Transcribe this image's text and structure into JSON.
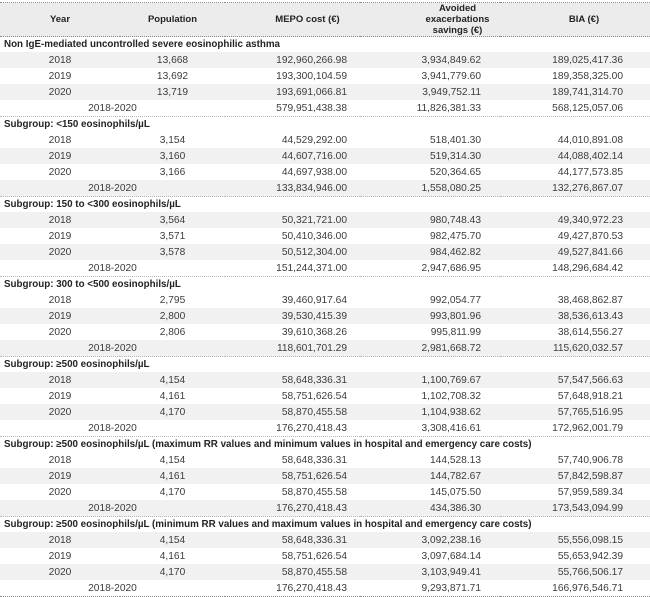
{
  "table": {
    "columns": [
      "Year",
      "Population",
      "MEPO cost (€)",
      "Avoided exacerbations savings (€)",
      "BIA (€)"
    ],
    "total_period_label": "2018-2020",
    "stripe_color": "#f1f1f1",
    "header_bg_color": "#ececec",
    "sections": [
      {
        "title": "Non IgE-mediated uncontrolled severe eosinophilic asthma",
        "rows": [
          {
            "year": "2018",
            "population": "13,668",
            "mepo_cost": "192,960,266.98",
            "avoided_savings": "3,934,849.62",
            "bia": "189,025,417.36"
          },
          {
            "year": "2019",
            "population": "13,692",
            "mepo_cost": "193,300,104.59",
            "avoided_savings": "3,941,779.60",
            "bia": "189,358,325.00"
          },
          {
            "year": "2020",
            "population": "13,719",
            "mepo_cost": "193,691,066.81",
            "avoided_savings": "3,949,752.11",
            "bia": "189,741,314.70"
          }
        ],
        "total": {
          "period": "2018-2020",
          "mepo_cost": "579,951,438.38",
          "avoided_savings": "11,826,381.33",
          "bia": "568,125,057.06"
        }
      },
      {
        "title": "Subgroup: <150 eosinophils/µL",
        "rows": [
          {
            "year": "2018",
            "population": "3,154",
            "mepo_cost": "44,529,292.00",
            "avoided_savings": "518,401.30",
            "bia": "44,010,891.08"
          },
          {
            "year": "2019",
            "population": "3,160",
            "mepo_cost": "44,607,716.00",
            "avoided_savings": "519,314.30",
            "bia": "44,088,402.14"
          },
          {
            "year": "2020",
            "population": "3,166",
            "mepo_cost": "44,697,938.00",
            "avoided_savings": "520,364.65",
            "bia": "44,177,573.85"
          }
        ],
        "total": {
          "period": "2018-2020",
          "mepo_cost": "133,834,946.00",
          "avoided_savings": "1,558,080.25",
          "bia": "132,276,867.07"
        }
      },
      {
        "title": "Subgroup: 150 to <300 eosinophils/µL",
        "rows": [
          {
            "year": "2018",
            "population": "3,564",
            "mepo_cost": "50,321,721.00",
            "avoided_savings": "980,748.43",
            "bia": "49,340,972.23"
          },
          {
            "year": "2019",
            "population": "3,571",
            "mepo_cost": "50,410,346.00",
            "avoided_savings": "982,475.70",
            "bia": "49,427,870.53"
          },
          {
            "year": "2020",
            "population": "3,578",
            "mepo_cost": "50,512,304.00",
            "avoided_savings": "984,462.82",
            "bia": "49,527,841.66"
          }
        ],
        "total": {
          "period": "2018-2020",
          "mepo_cost": "151,244,371.00",
          "avoided_savings": "2,947,686.95",
          "bia": "148,296,684.42"
        }
      },
      {
        "title": "Subgroup: 300 to <500 eosinophils/µL",
        "rows": [
          {
            "year": "2018",
            "population": "2,795",
            "mepo_cost": "39,460,917.64",
            "avoided_savings": "992,054.77",
            "bia": "38,468,862.87"
          },
          {
            "year": "2019",
            "population": "2,800",
            "mepo_cost": "39,530,415.39",
            "avoided_savings": "993,801.96",
            "bia": "38,536,613.43"
          },
          {
            "year": "2020",
            "population": "2,806",
            "mepo_cost": "39,610,368.26",
            "avoided_savings": "995,811.99",
            "bia": "38,614,556.27"
          }
        ],
        "total": {
          "period": "2018-2020",
          "mepo_cost": "118,601,701.29",
          "avoided_savings": "2,981,668.72",
          "bia": "115,620,032.57"
        }
      },
      {
        "title": "Subgroup: ≥500 eosinophils/µL",
        "rows": [
          {
            "year": "2018",
            "population": "4,154",
            "mepo_cost": "58,648,336.31",
            "avoided_savings": "1,100,769.67",
            "bia": "57,547,566.63"
          },
          {
            "year": "2019",
            "population": "4,161",
            "mepo_cost": "58,751,626.54",
            "avoided_savings": "1,102,708.32",
            "bia": "57,648,918.21"
          },
          {
            "year": "2020",
            "population": "4,170",
            "mepo_cost": "58,870,455.58",
            "avoided_savings": "1,104,938.62",
            "bia": "57,765,516.95"
          }
        ],
        "total": {
          "period": "2018-2020",
          "mepo_cost": "176,270,418.43",
          "avoided_savings": "3,308,416.61",
          "bia": "172,962,001.79"
        }
      },
      {
        "title": "Subgroup: ≥500 eosinophils/µL (maximum RR values and minimum values in hospital and emergency care costs)",
        "rows": [
          {
            "year": "2018",
            "population": "4,154",
            "mepo_cost": "58,648,336.31",
            "avoided_savings": "144,528.13",
            "bia": "57,740,906.78"
          },
          {
            "year": "2019",
            "population": "4,161",
            "mepo_cost": "58,751,626.54",
            "avoided_savings": "144,782.67",
            "bia": "57,842,598.87"
          },
          {
            "year": "2020",
            "population": "4,170",
            "mepo_cost": "58,870,455.58",
            "avoided_savings": "145,075.50",
            "bia": "57,959,589.34"
          }
        ],
        "total": {
          "period": "2018-2020",
          "mepo_cost": "176,270,418.43",
          "avoided_savings": "434,386.30",
          "bia": "173,543,094.99"
        }
      },
      {
        "title": "Subgroup: ≥500 eosinophils/µL (minimum RR values and maximum values in hospital and emergency care costs)",
        "rows": [
          {
            "year": "2018",
            "population": "4,154",
            "mepo_cost": "58,648,336.31",
            "avoided_savings": "3,092,238.16",
            "bia": "55,556,098.15"
          },
          {
            "year": "2019",
            "population": "4,161",
            "mepo_cost": "58,751,626.54",
            "avoided_savings": "3,097,684.14",
            "bia": "55,653,942.39"
          },
          {
            "year": "2020",
            "population": "4,170",
            "mepo_cost": "58,870,455.58",
            "avoided_savings": "3,103,949.41",
            "bia": "55,766,506.17"
          }
        ],
        "total": {
          "period": "2018-2020",
          "mepo_cost": "176,270,418.43",
          "avoided_savings": "9,293,871.71",
          "bia": "166,976,546.71"
        }
      }
    ]
  }
}
